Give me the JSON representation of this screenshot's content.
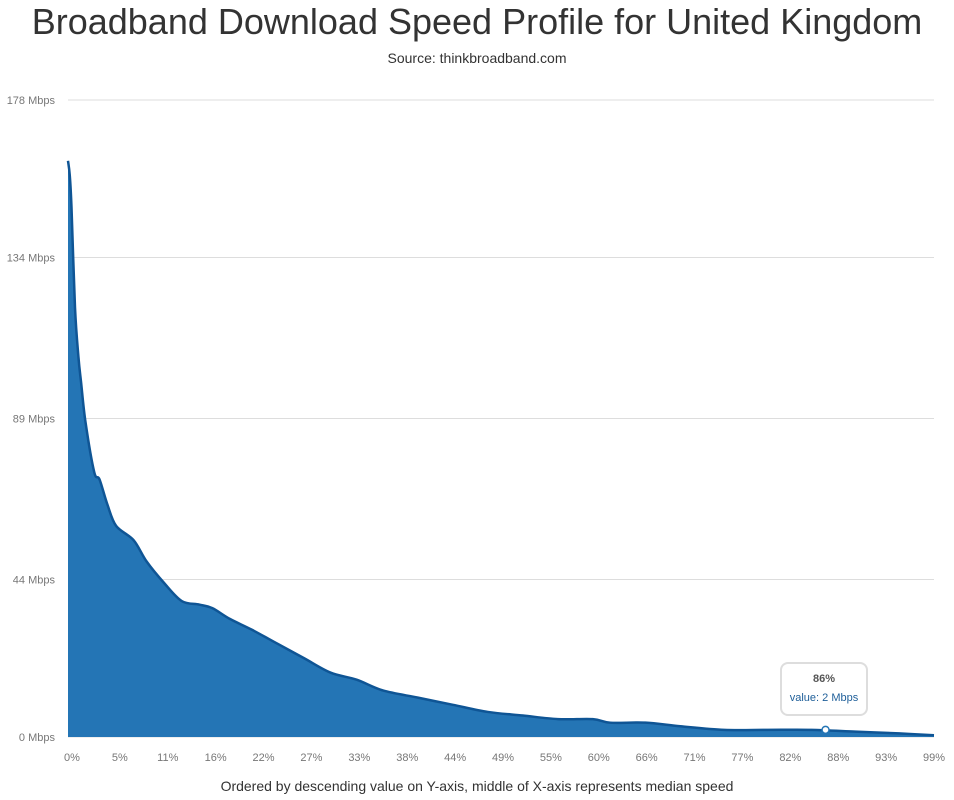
{
  "colors": {
    "area": "#2475b5",
    "line": "#0f5595",
    "text": "#333333",
    "tick": "#777777",
    "grid": "#dddddd"
  },
  "chart_data": {
    "type": "area",
    "title": "Broadband Download Speed Profile for United Kingdom",
    "subtitle": "Source: thinkbroadband.com",
    "xlabel": "Ordered by descending value on Y-axis, middle of X-axis represents median speed",
    "ylabel": "",
    "y_ticks": [
      "0 Mbps",
      "44 Mbps",
      "89 Mbps",
      "134 Mbps",
      "178 Mbps"
    ],
    "y_tick_values": [
      0,
      44,
      89,
      134,
      178
    ],
    "x_ticks": [
      "0%",
      "5%",
      "11%",
      "16%",
      "22%",
      "27%",
      "33%",
      "38%",
      "44%",
      "49%",
      "55%",
      "60%",
      "66%",
      "71%",
      "77%",
      "82%",
      "88%",
      "93%",
      "99%"
    ],
    "xlim": [
      0,
      99
    ],
    "ylim": [
      0,
      178
    ],
    "grid": true,
    "legend": "none",
    "series": [
      {
        "x": [
          0,
          0.2,
          0.4,
          0.8,
          1.2,
          1.5,
          2.0,
          3.0,
          3.6,
          4.5,
          5.5,
          7.5,
          9.0,
          11.0,
          13.0,
          15.0,
          16.5,
          18.5,
          21.0,
          24.0,
          27.0,
          30.0,
          33.0,
          36.0,
          40.0,
          44.0,
          48.0,
          52.0,
          56.0,
          60.0,
          62.0,
          66.0,
          70.0,
          75.0,
          80.0,
          85.0,
          90.0,
          95.0,
          99.0
        ],
        "y": [
          161,
          157,
          148,
          120,
          106,
          99,
          88,
          74,
          72,
          65,
          59,
          55,
          49,
          43,
          38,
          37,
          36,
          33,
          30,
          26,
          22,
          18,
          16,
          13,
          11,
          9,
          7,
          6,
          5,
          5,
          4,
          4,
          3,
          2,
          2,
          2,
          1.5,
          1,
          0.5
        ]
      }
    ],
    "tooltip": {
      "title": "86%",
      "value_text": "value: 2 Mbps",
      "x": 86.6,
      "y": 2
    }
  }
}
